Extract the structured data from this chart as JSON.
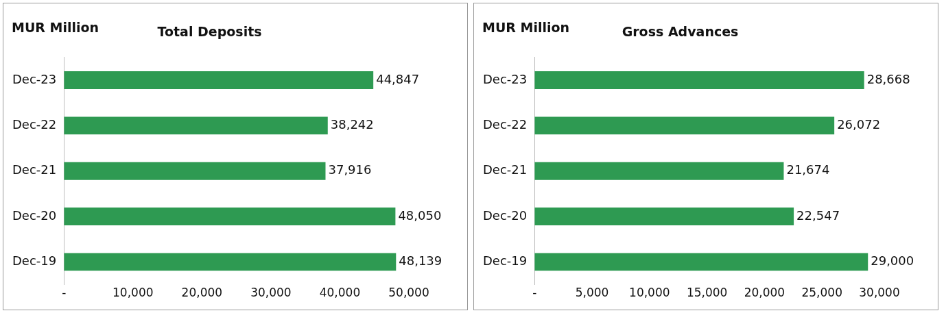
{
  "chart_data": [
    {
      "type": "bar",
      "orientation": "horizontal",
      "title": "Total Deposits",
      "annotations": [
        "MUR Million"
      ],
      "categories": [
        "Dec-23",
        "Dec-22",
        "Dec-21",
        "Dec-20",
        "Dec-19"
      ],
      "values": [
        44847,
        38242,
        37916,
        48050,
        48139
      ],
      "value_labels": [
        "44,847",
        "38,242",
        "37,916",
        "48,050",
        "48,139"
      ],
      "color": "#2e9a52",
      "xlim": [
        0,
        50000
      ],
      "xticks": [
        {
          "value": 0,
          "label": "-"
        },
        {
          "value": 10000,
          "label": "10,000"
        },
        {
          "value": 20000,
          "label": "20,000"
        },
        {
          "value": 30000,
          "label": "30,000"
        },
        {
          "value": 40000,
          "label": "40,000"
        },
        {
          "value": 50000,
          "label": "50,000"
        }
      ]
    },
    {
      "type": "bar",
      "orientation": "horizontal",
      "title": "Gross Advances",
      "annotations": [
        "MUR Million"
      ],
      "categories": [
        "Dec-23",
        "Dec-22",
        "Dec-21",
        "Dec-20",
        "Dec-19"
      ],
      "values": [
        28668,
        26072,
        21674,
        22547,
        29000
      ],
      "value_labels": [
        "28,668",
        "26,072",
        "21,674",
        "22,547",
        "29,000"
      ],
      "color": "#2e9a52",
      "xlim": [
        0,
        30000
      ],
      "xticks": [
        {
          "value": 0,
          "label": "-"
        },
        {
          "value": 5000,
          "label": "5,000"
        },
        {
          "value": 10000,
          "label": "10,000"
        },
        {
          "value": 15000,
          "label": "15,000"
        },
        {
          "value": 20000,
          "label": "20,000"
        },
        {
          "value": 25000,
          "label": "25,000"
        },
        {
          "value": 30000,
          "label": "30,000"
        }
      ]
    }
  ]
}
